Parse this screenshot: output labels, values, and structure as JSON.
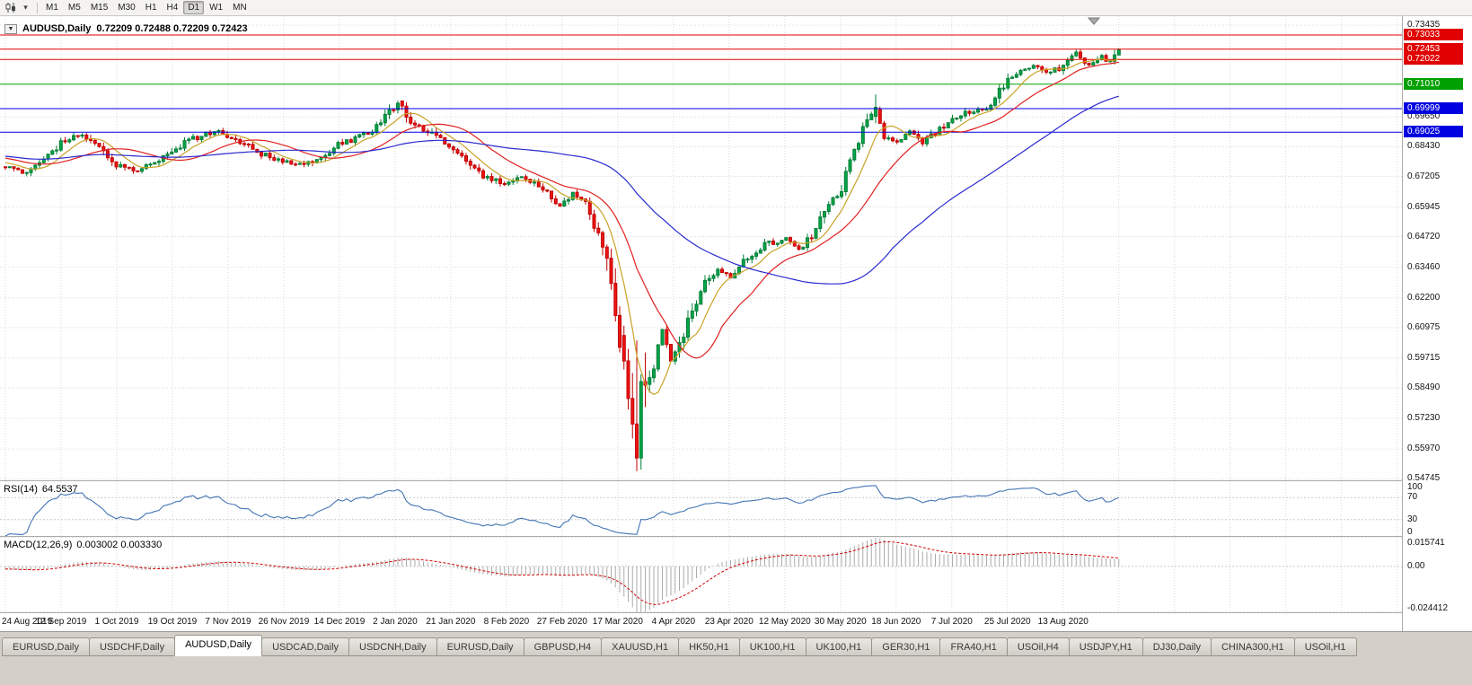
{
  "toolbar": {
    "timeframes": [
      "M1",
      "M5",
      "M15",
      "M30",
      "H1",
      "H4",
      "D1",
      "W1",
      "MN"
    ],
    "active_timeframe": "D1"
  },
  "chart": {
    "symbol_period": "AUDUSD,Daily",
    "ohlc": "0.72209 0.72488 0.72209 0.72423",
    "price_ticks": [
      "0.73435",
      "0.69650",
      "0.68430",
      "0.67205",
      "0.65945",
      "0.64720",
      "0.63460",
      "0.62200",
      "0.60975",
      "0.59715",
      "0.58490",
      "0.57230",
      "0.55970",
      "0.54745"
    ],
    "date_labels": [
      "24 Aug 2019",
      "12 Sep 2019",
      "1 Oct 2019",
      "19 Oct 2019",
      "7 Nov 2019",
      "26 Nov 2019",
      "14 Dec 2019",
      "2 Jan 2020",
      "21 Jan 2020",
      "8 Feb 2020",
      "27 Feb 2020",
      "17 Mar 2020",
      "4 Apr 2020",
      "23 Apr 2020",
      "12 May 2020",
      "30 May 2020",
      "18 Jun 2020",
      "7 Jul 2020",
      "25 Jul 2020",
      "13 Aug 2020"
    ]
  },
  "rsi": {
    "name": "RSI(14)",
    "value": "64.5537",
    "ticks": [
      "100",
      "70",
      "30",
      "0"
    ],
    "guide_levels": [
      70,
      30
    ]
  },
  "macd": {
    "name": "MACD(12,26,9)",
    "values": "0.003002 0.003330",
    "ticks": [
      "0.015741",
      "0.00",
      "-0.024412"
    ]
  },
  "tabs": [
    "EURUSD,Daily",
    "USDCHF,Daily",
    "AUDUSD,Daily",
    "USDCAD,Daily",
    "USDCNH,Daily",
    "EURUSD,Daily",
    "GBPUSD,H4",
    "XAUUSD,H1",
    "HK50,H1",
    "UK100,H1",
    "UK100,H1",
    "GER30,H1",
    "FRA40,H1",
    "USOil,H4",
    "USDJPY,H1",
    "DJ30,Daily",
    "CHINA300,H1",
    "USOil,H1"
  ],
  "active_tab_index": 2,
  "chart_data": {
    "type": "candlestick",
    "symbol": "AUDUSD",
    "timeframe": "Daily",
    "last_ohlc": {
      "o": 0.72209,
      "h": 0.72488,
      "l": 0.72209,
      "c": 0.72423
    },
    "price_axis_range": [
      0.5468,
      0.7381
    ],
    "n_candles": 262,
    "up_color": "#00A648",
    "up_stroke": "#007D36",
    "down_color": "#F01414",
    "down_stroke": "#C00000",
    "price_path_anchors": [
      [
        0,
        0.676
      ],
      [
        4,
        0.6736
      ],
      [
        8,
        0.677
      ],
      [
        13,
        0.6858
      ],
      [
        18,
        0.6893
      ],
      [
        22,
        0.6846
      ],
      [
        26,
        0.6768
      ],
      [
        31,
        0.6742
      ],
      [
        35,
        0.6776
      ],
      [
        39,
        0.6828
      ],
      [
        43,
        0.6868
      ],
      [
        47,
        0.6896
      ],
      [
        50,
        0.6906
      ],
      [
        55,
        0.6862
      ],
      [
        60,
        0.6814
      ],
      [
        65,
        0.6782
      ],
      [
        70,
        0.6772
      ],
      [
        75,
        0.6803
      ],
      [
        78,
        0.6852
      ],
      [
        83,
        0.6883
      ],
      [
        87,
        0.6922
      ],
      [
        91,
        0.7002
      ],
      [
        92,
        0.7026
      ],
      [
        96,
        0.6928
      ],
      [
        100,
        0.6897
      ],
      [
        104,
        0.6851
      ],
      [
        108,
        0.6791
      ],
      [
        112,
        0.6722
      ],
      [
        117,
        0.6692
      ],
      [
        121,
        0.6716
      ],
      [
        125,
        0.6681
      ],
      [
        128,
        0.6632
      ],
      [
        130,
        0.6592
      ],
      [
        133,
        0.6648
      ],
      [
        136,
        0.6617
      ],
      [
        139,
        0.6486
      ],
      [
        142,
        0.6315
      ],
      [
        144,
        0.601
      ],
      [
        146,
        0.58
      ],
      [
        148,
        0.556
      ],
      [
        150,
        0.586
      ],
      [
        152,
        0.5935
      ],
      [
        154,
        0.609
      ],
      [
        156,
        0.596
      ],
      [
        158,
        0.602
      ],
      [
        161,
        0.616
      ],
      [
        164,
        0.63
      ],
      [
        167,
        0.633
      ],
      [
        170,
        0.631
      ],
      [
        174,
        0.639
      ],
      [
        178,
        0.644
      ],
      [
        183,
        0.6462
      ],
      [
        186,
        0.642
      ],
      [
        190,
        0.65
      ],
      [
        193,
        0.661
      ],
      [
        196,
        0.6672
      ],
      [
        199,
        0.683
      ],
      [
        202,
        0.695
      ],
      [
        204,
        0.7005
      ],
      [
        206,
        0.689
      ],
      [
        209,
        0.686
      ],
      [
        212,
        0.6912
      ],
      [
        215,
        0.686
      ],
      [
        218,
        0.69
      ],
      [
        222,
        0.695
      ],
      [
        226,
        0.6988
      ],
      [
        230,
        0.7002
      ],
      [
        233,
        0.7075
      ],
      [
        235,
        0.7115
      ],
      [
        238,
        0.7155
      ],
      [
        241,
        0.7185
      ],
      [
        244,
        0.715
      ],
      [
        248,
        0.7172
      ],
      [
        251,
        0.723
      ],
      [
        254,
        0.7182
      ],
      [
        257,
        0.7212
      ],
      [
        259,
        0.719
      ],
      [
        261,
        0.72423
      ]
    ],
    "candle_overrides": [
      {
        "i": 92,
        "o": 0.6995,
        "h": 0.7032,
        "l": 0.698,
        "c": 0.7022
      },
      {
        "i": 145,
        "o": 0.6065,
        "h": 0.6105,
        "l": 0.5925,
        "c": 0.596
      },
      {
        "i": 146,
        "o": 0.596,
        "h": 0.601,
        "l": 0.576,
        "c": 0.5805
      },
      {
        "i": 147,
        "o": 0.5805,
        "h": 0.591,
        "l": 0.564,
        "c": 0.57
      },
      {
        "i": 148,
        "o": 0.57,
        "h": 0.6045,
        "l": 0.5506,
        "c": 0.556
      },
      {
        "i": 149,
        "o": 0.556,
        "h": 0.5905,
        "l": 0.5512,
        "c": 0.5875
      },
      {
        "i": 150,
        "o": 0.5875,
        "h": 0.5995,
        "l": 0.577,
        "c": 0.586
      },
      {
        "i": 204,
        "o": 0.6968,
        "h": 0.7058,
        "l": 0.694,
        "c": 0.7005
      },
      {
        "i": 260,
        "o": 0.7195,
        "h": 0.7242,
        "l": 0.7182,
        "c": 0.7221
      },
      {
        "i": 261,
        "o": 0.72209,
        "h": 0.72488,
        "l": 0.72209,
        "c": 0.72423
      }
    ],
    "horizontal_levels": [
      {
        "value": 0.73033,
        "color": "#E00000"
      },
      {
        "value": 0.72453,
        "color": "#E00000"
      },
      {
        "value": 0.72022,
        "color": "#E00000"
      },
      {
        "value": 0.7101,
        "color": "#00A000"
      },
      {
        "value": 0.69999,
        "color": "#0000E0"
      },
      {
        "value": 0.69025,
        "color": "#0000E0"
      }
    ],
    "moving_averages": [
      {
        "period": 8,
        "color": "#C9A227"
      },
      {
        "period": 20,
        "color": "#E02020"
      },
      {
        "period": 60,
        "color": "#2A2AD0"
      }
    ],
    "rsi": {
      "period": 14,
      "last": 64.5537,
      "color": "#4576B5",
      "range": [
        0,
        100
      ],
      "guides": [
        70,
        30
      ]
    },
    "macd": {
      "fast": 12,
      "slow": 26,
      "signal": 9,
      "last_macd": 0.003002,
      "last_signal": 0.00333,
      "axis_range": [
        -0.024412,
        0.015741
      ],
      "histogram_color": "#ABABAB",
      "signal_color": "#D00000"
    }
  }
}
